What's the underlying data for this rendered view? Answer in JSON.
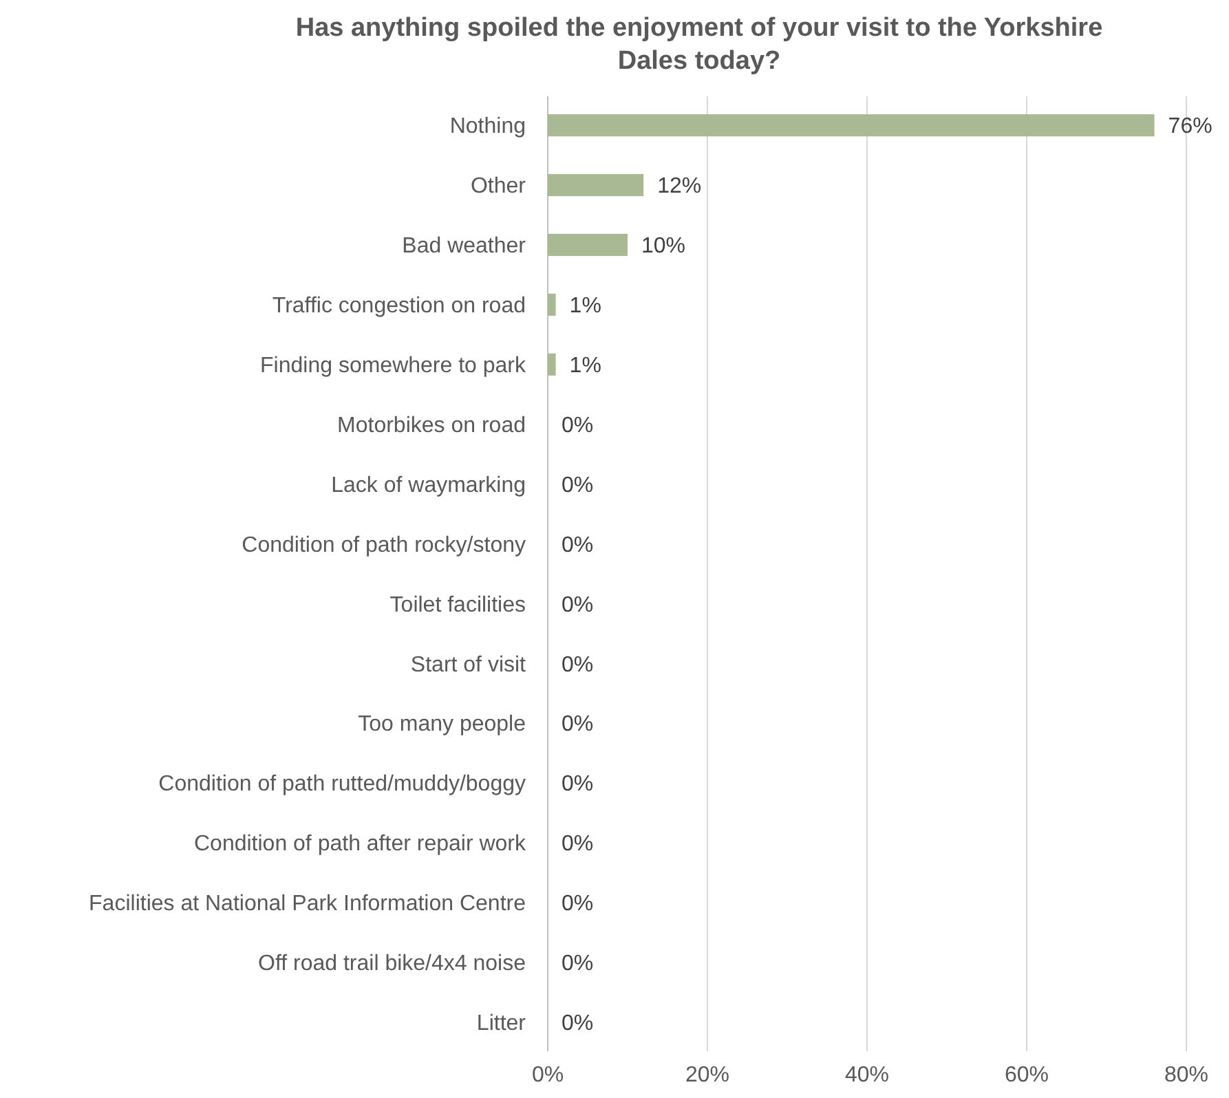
{
  "chart_data": {
    "type": "bar",
    "orientation": "horizontal",
    "title": "Has anything spoiled the enjoyment of your visit to the Yorkshire Dales today?",
    "categories": [
      "Nothing",
      "Other",
      "Bad weather",
      "Traffic congestion on road",
      "Finding somewhere to park",
      "Motorbikes on road",
      "Lack of waymarking",
      "Condition of path rocky/stony",
      "Toilet facilities",
      "Start of visit",
      "Too many people",
      "Condition of path rutted/muddy/boggy",
      "Condition of path after repair work",
      "Facilities at National Park Information Centre",
      "Off road trail bike/4x4 noise",
      "Litter"
    ],
    "values": [
      76,
      12,
      10,
      1,
      1,
      0,
      0,
      0,
      0,
      0,
      0,
      0,
      0,
      0,
      0,
      0
    ],
    "color": "#a9b994",
    "xlim": [
      0,
      80
    ],
    "xticks": [
      {
        "value": 0,
        "label": "0%"
      },
      {
        "value": 20,
        "label": "20%"
      },
      {
        "value": 40,
        "label": "40%"
      },
      {
        "value": 60,
        "label": "60%"
      },
      {
        "value": 80,
        "label": "80%"
      }
    ],
    "value_labels": [
      "76%",
      "12%",
      "10%",
      "1%",
      "1%",
      "0%",
      "0%",
      "0%",
      "0%",
      "0%",
      "0%",
      "0%",
      "0%",
      "0%",
      "0%",
      "0%"
    ],
    "grid": "x"
  }
}
